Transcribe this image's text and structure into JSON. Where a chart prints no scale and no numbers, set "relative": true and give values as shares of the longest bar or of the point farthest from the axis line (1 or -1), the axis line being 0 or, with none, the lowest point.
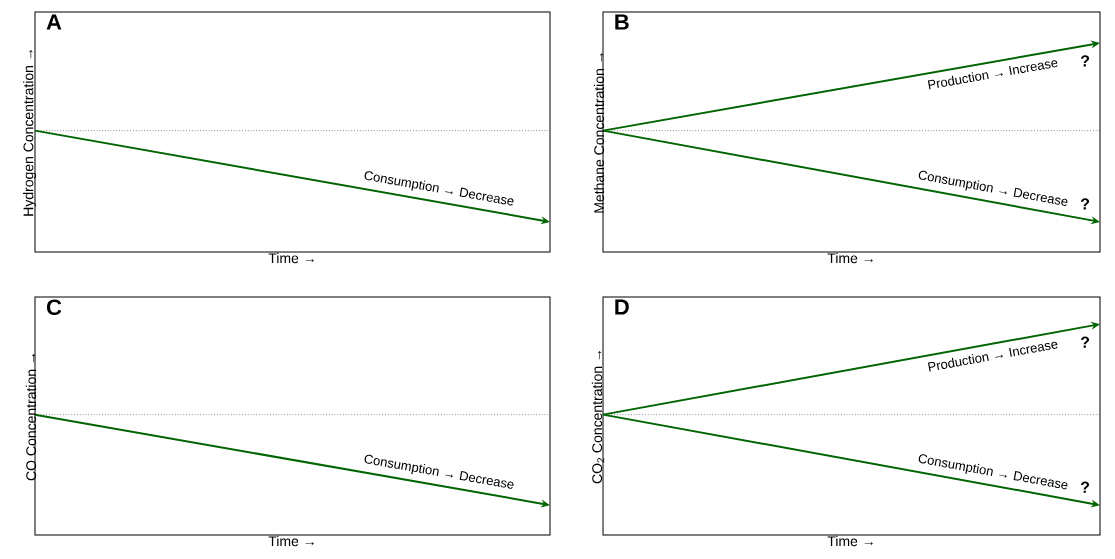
{
  "chart_data": [
    {
      "type": "line",
      "title": "A",
      "ylabel": "Hydrogen Concentration →",
      "xlabel": "Time →",
      "relative": true,
      "categories": [
        null,
        null
      ],
      "series": [
        {
          "name": "Consumption → Decrease",
          "color": "#006400",
          "values": [
            1,
            0
          ]
        }
      ],
      "ref_lines": [
        {
          "axis": "y",
          "value": 1,
          "color": "#555555",
          "line_style": "dotted"
        }
      ]
    },
    {
      "type": "line",
      "title": "B",
      "ylabel": "Methane Concentration →",
      "xlabel": "Time →",
      "relative": true,
      "categories": [
        null,
        null
      ],
      "series": [
        {
          "name": "Production → Increase",
          "color": "#006400",
          "values": [
            0.51,
            1
          ]
        },
        {
          "name": "Consumption → Decrease",
          "color": "#006400",
          "values": [
            0.51,
            0
          ]
        }
      ],
      "ref_lines": [
        {
          "axis": "y",
          "value": 0.51,
          "color": "#555555",
          "line_style": "dotted"
        }
      ],
      "annotations": [
        "?",
        "?"
      ]
    },
    {
      "type": "line",
      "title": "C",
      "ylabel": "CO Concentration →",
      "xlabel": "Time →",
      "relative": true,
      "categories": [
        null,
        null
      ],
      "series": [
        {
          "name": "Consumption → Decrease",
          "color": "#006400",
          "values": [
            1,
            0
          ]
        }
      ],
      "ref_lines": [
        {
          "axis": "y",
          "value": 1,
          "color": "#555555",
          "line_style": "dotted"
        }
      ]
    },
    {
      "type": "line",
      "title": "D",
      "ylabel": "CO$_{2}$ Concentration →",
      "xlabel": "Time →",
      "relative": true,
      "categories": [
        null,
        null
      ],
      "series": [
        {
          "name": "Production → Increase",
          "color": "#006400",
          "values": [
            0.5,
            1
          ]
        },
        {
          "name": "Consumption → Decrease",
          "color": "#006400",
          "values": [
            0.5,
            0
          ]
        }
      ],
      "ref_lines": [
        {
          "axis": "y",
          "value": 0.5,
          "color": "#555555",
          "line_style": "dotted"
        }
      ],
      "annotations": [
        "?",
        "?"
      ]
    }
  ]
}
